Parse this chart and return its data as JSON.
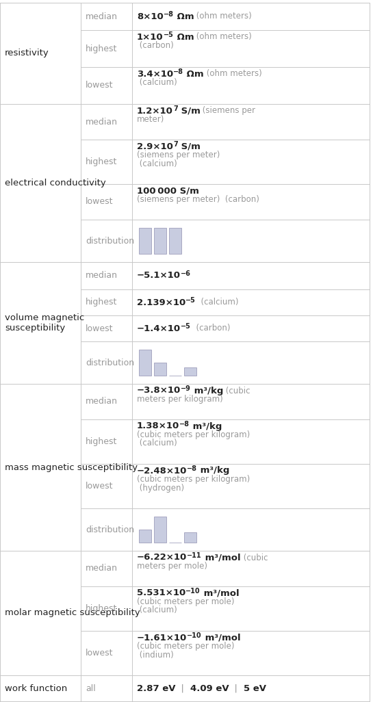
{
  "bg_color": "#ffffff",
  "border_color": "#c8c8c8",
  "text_color_dark": "#222222",
  "text_color_light": "#999999",
  "rows": [
    {
      "property": "resistivity",
      "subrows": [
        {
          "label": "median",
          "value_lines": [
            [
              {
                "t": "8×10",
                "b": true,
                "sz": 9.5
              },
              {
                "t": "−8",
                "b": true,
                "sz": 7,
                "sup": true
              },
              {
                "t": " Ωm",
                "b": true,
                "sz": 9.5
              },
              {
                "t": " (ohm meters)",
                "b": false,
                "sz": 8.5
              }
            ]
          ]
        },
        {
          "label": "highest",
          "value_lines": [
            [
              {
                "t": "1×10",
                "b": true,
                "sz": 9.5
              },
              {
                "t": "−5",
                "b": true,
                "sz": 7,
                "sup": true
              },
              {
                "t": " Ωm",
                "b": true,
                "sz": 9.5
              },
              {
                "t": " (ohm meters)",
                "b": false,
                "sz": 8.5
              }
            ],
            [
              {
                "t": " (carbon)",
                "b": false,
                "sz": 8.5
              }
            ]
          ]
        },
        {
          "label": "lowest",
          "value_lines": [
            [
              {
                "t": "3.4×10",
                "b": true,
                "sz": 9.5
              },
              {
                "t": "−8",
                "b": true,
                "sz": 7,
                "sup": true
              },
              {
                "t": " Ωm",
                "b": true,
                "sz": 9.5
              },
              {
                "t": " (ohm meters)",
                "b": false,
                "sz": 8.5
              }
            ],
            [
              {
                "t": " (calcium)",
                "b": false,
                "sz": 8.5
              }
            ]
          ]
        }
      ]
    },
    {
      "property": "electrical conductivity",
      "subrows": [
        {
          "label": "median",
          "value_lines": [
            [
              {
                "t": "1.2×10",
                "b": true,
                "sz": 9.5
              },
              {
                "t": "7",
                "b": true,
                "sz": 7,
                "sup": true
              },
              {
                "t": " S/m",
                "b": true,
                "sz": 9.5
              },
              {
                "t": " (siemens per",
                "b": false,
                "sz": 8.5
              }
            ],
            [
              {
                "t": "meter)",
                "b": false,
                "sz": 8.5
              }
            ]
          ]
        },
        {
          "label": "highest",
          "value_lines": [
            [
              {
                "t": "2.9×10",
                "b": true,
                "sz": 9.5
              },
              {
                "t": "7",
                "b": true,
                "sz": 7,
                "sup": true
              },
              {
                "t": " S/m",
                "b": true,
                "sz": 9.5
              }
            ],
            [
              {
                "t": "(siemens per meter)",
                "b": false,
                "sz": 8.5
              }
            ],
            [
              {
                "t": " (calcium)",
                "b": false,
                "sz": 8.5
              }
            ]
          ]
        },
        {
          "label": "lowest",
          "value_lines": [
            [
              {
                "t": "100 000 S/m",
                "b": true,
                "sz": 9.5
              }
            ],
            [
              {
                "t": "(siemens per meter)  (carbon)",
                "b": false,
                "sz": 8.5
              }
            ]
          ]
        },
        {
          "label": "distribution",
          "type": "bar_chart",
          "bar_data": [
            1.0,
            1.0,
            1.0
          ],
          "bar_color": "#c8cce0"
        }
      ]
    },
    {
      "property": "volume magnetic\nsusceptibility",
      "subrows": [
        {
          "label": "median",
          "value_lines": [
            [
              {
                "t": "−5.1×10",
                "b": true,
                "sz": 9.5
              },
              {
                "t": "−6",
                "b": true,
                "sz": 7,
                "sup": true
              }
            ]
          ]
        },
        {
          "label": "highest",
          "value_lines": [
            [
              {
                "t": "2.139×10",
                "b": true,
                "sz": 9.5
              },
              {
                "t": "−5",
                "b": true,
                "sz": 7,
                "sup": true
              },
              {
                "t": "  (calcium)",
                "b": false,
                "sz": 8.5
              }
            ]
          ]
        },
        {
          "label": "lowest",
          "value_lines": [
            [
              {
                "t": "−1.4×10",
                "b": true,
                "sz": 9.5
              },
              {
                "t": "−5",
                "b": true,
                "sz": 7,
                "sup": true
              },
              {
                "t": "  (carbon)",
                "b": false,
                "sz": 8.5
              }
            ]
          ]
        },
        {
          "label": "distribution",
          "type": "bar_chart",
          "bar_data": [
            1.0,
            0.5,
            0.0,
            0.33
          ],
          "bar_color": "#c8cce0"
        }
      ]
    },
    {
      "property": "mass magnetic susceptibility",
      "subrows": [
        {
          "label": "median",
          "value_lines": [
            [
              {
                "t": "−3.8×10",
                "b": true,
                "sz": 9.5
              },
              {
                "t": "−9",
                "b": true,
                "sz": 7,
                "sup": true
              },
              {
                "t": " m³/kg",
                "b": true,
                "sz": 9.5
              },
              {
                "t": " (cubic",
                "b": false,
                "sz": 8.5
              }
            ],
            [
              {
                "t": "meters per kilogram)",
                "b": false,
                "sz": 8.5
              }
            ]
          ]
        },
        {
          "label": "highest",
          "value_lines": [
            [
              {
                "t": "1.38×10",
                "b": true,
                "sz": 9.5
              },
              {
                "t": "−8",
                "b": true,
                "sz": 7,
                "sup": true
              },
              {
                "t": " m³/kg",
                "b": true,
                "sz": 9.5
              }
            ],
            [
              {
                "t": "(cubic meters per kilogram)",
                "b": false,
                "sz": 8.5
              }
            ],
            [
              {
                "t": " (calcium)",
                "b": false,
                "sz": 8.5
              }
            ]
          ]
        },
        {
          "label": "lowest",
          "value_lines": [
            [
              {
                "t": "−2.48×10",
                "b": true,
                "sz": 9.5
              },
              {
                "t": "−8",
                "b": true,
                "sz": 7,
                "sup": true
              },
              {
                "t": " m³/kg",
                "b": true,
                "sz": 9.5
              }
            ],
            [
              {
                "t": "(cubic meters per kilogram)",
                "b": false,
                "sz": 8.5
              }
            ],
            [
              {
                "t": " (hydrogen)",
                "b": false,
                "sz": 8.5
              }
            ]
          ]
        },
        {
          "label": "distribution",
          "type": "bar_chart",
          "bar_data": [
            0.5,
            1.0,
            0.0,
            0.4
          ],
          "bar_color": "#c8cce0"
        }
      ]
    },
    {
      "property": "molar magnetic susceptibility",
      "subrows": [
        {
          "label": "median",
          "value_lines": [
            [
              {
                "t": "−6.22×10",
                "b": true,
                "sz": 9.5
              },
              {
                "t": "−11",
                "b": true,
                "sz": 7,
                "sup": true
              },
              {
                "t": " m³/mol",
                "b": true,
                "sz": 9.5
              },
              {
                "t": " (cubic",
                "b": false,
                "sz": 8.5
              }
            ],
            [
              {
                "t": "meters per mole)",
                "b": false,
                "sz": 8.5
              }
            ]
          ]
        },
        {
          "label": "highest",
          "value_lines": [
            [
              {
                "t": "5.531×10",
                "b": true,
                "sz": 9.5
              },
              {
                "t": "−10",
                "b": true,
                "sz": 7,
                "sup": true
              },
              {
                "t": " m³/mol",
                "b": true,
                "sz": 9.5
              }
            ],
            [
              {
                "t": "(cubic meters per mole)",
                "b": false,
                "sz": 8.5
              }
            ],
            [
              {
                "t": " (calcium)",
                "b": false,
                "sz": 8.5
              }
            ]
          ]
        },
        {
          "label": "lowest",
          "value_lines": [
            [
              {
                "t": "−1.61×10",
                "b": true,
                "sz": 9.5
              },
              {
                "t": "−10",
                "b": true,
                "sz": 7,
                "sup": true
              },
              {
                "t": " m³/mol",
                "b": true,
                "sz": 9.5
              }
            ],
            [
              {
                "t": "(cubic meters per mole)",
                "b": false,
                "sz": 8.5
              }
            ],
            [
              {
                "t": " (indium)",
                "b": false,
                "sz": 8.5
              }
            ]
          ]
        }
      ]
    },
    {
      "property": "work function",
      "subrows": [
        {
          "label": "all",
          "value_lines": [
            [
              {
                "t": "2.87 eV",
                "b": true,
                "sz": 9.5
              },
              {
                "t": "  |  ",
                "b": false,
                "sz": 9.5
              },
              {
                "t": "4.09 eV",
                "b": true,
                "sz": 9.5
              },
              {
                "t": "  |  ",
                "b": false,
                "sz": 9.5
              },
              {
                "t": "5 eV",
                "b": true,
                "sz": 9.5
              }
            ]
          ]
        }
      ]
    }
  ]
}
